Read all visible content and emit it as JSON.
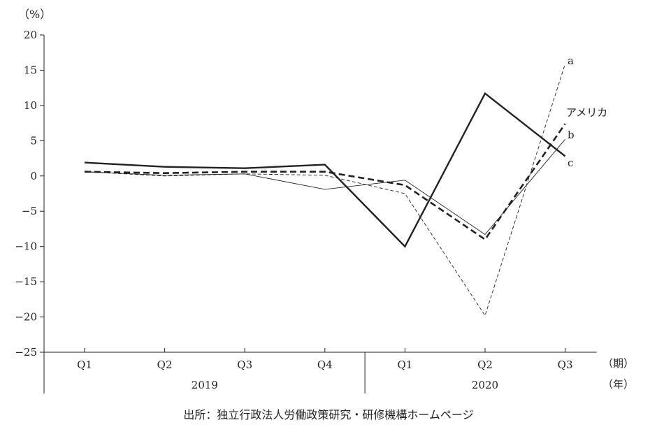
{
  "chart_data": {
    "type": "line",
    "y_unit_label": "（%）",
    "x_period_label": "（期）",
    "year_axis_label": "（年）",
    "categories": [
      "Q1",
      "Q2",
      "Q3",
      "Q4",
      "Q1",
      "Q2",
      "Q3"
    ],
    "years": [
      {
        "label": "2019",
        "span": [
          0,
          3
        ]
      },
      {
        "label": "2020",
        "span": [
          4,
          6
        ]
      }
    ],
    "ylim": [
      -25,
      20
    ],
    "yticks": [
      20,
      15,
      10,
      5,
      0,
      -5,
      -10,
      -15,
      -20,
      -25
    ],
    "ytick_labels": [
      "20",
      "15",
      "10",
      "5",
      "0",
      "−5",
      "−10",
      "−15",
      "−20",
      "−25"
    ],
    "grid": false,
    "series": [
      {
        "name": "アメリカ",
        "style": "thick-dashed",
        "values": [
          0.6,
          0.4,
          0.6,
          0.6,
          -1.3,
          -9.0,
          7.4
        ]
      },
      {
        "name": "a",
        "style": "thin-dashed",
        "values": [
          0.6,
          0.0,
          0.3,
          0.1,
          -2.5,
          -19.8,
          15.9
        ]
      },
      {
        "name": "b",
        "style": "thin-solid",
        "values": [
          0.6,
          0.1,
          0.3,
          -1.9,
          -0.6,
          -8.3,
          5.2
        ]
      },
      {
        "name": "c",
        "style": "thick-solid",
        "values": [
          1.9,
          1.3,
          1.1,
          1.6,
          -10.0,
          11.7,
          2.8
        ]
      }
    ],
    "source": "出所：独立行政法人労働政策研究・研修機構ホームページ"
  }
}
